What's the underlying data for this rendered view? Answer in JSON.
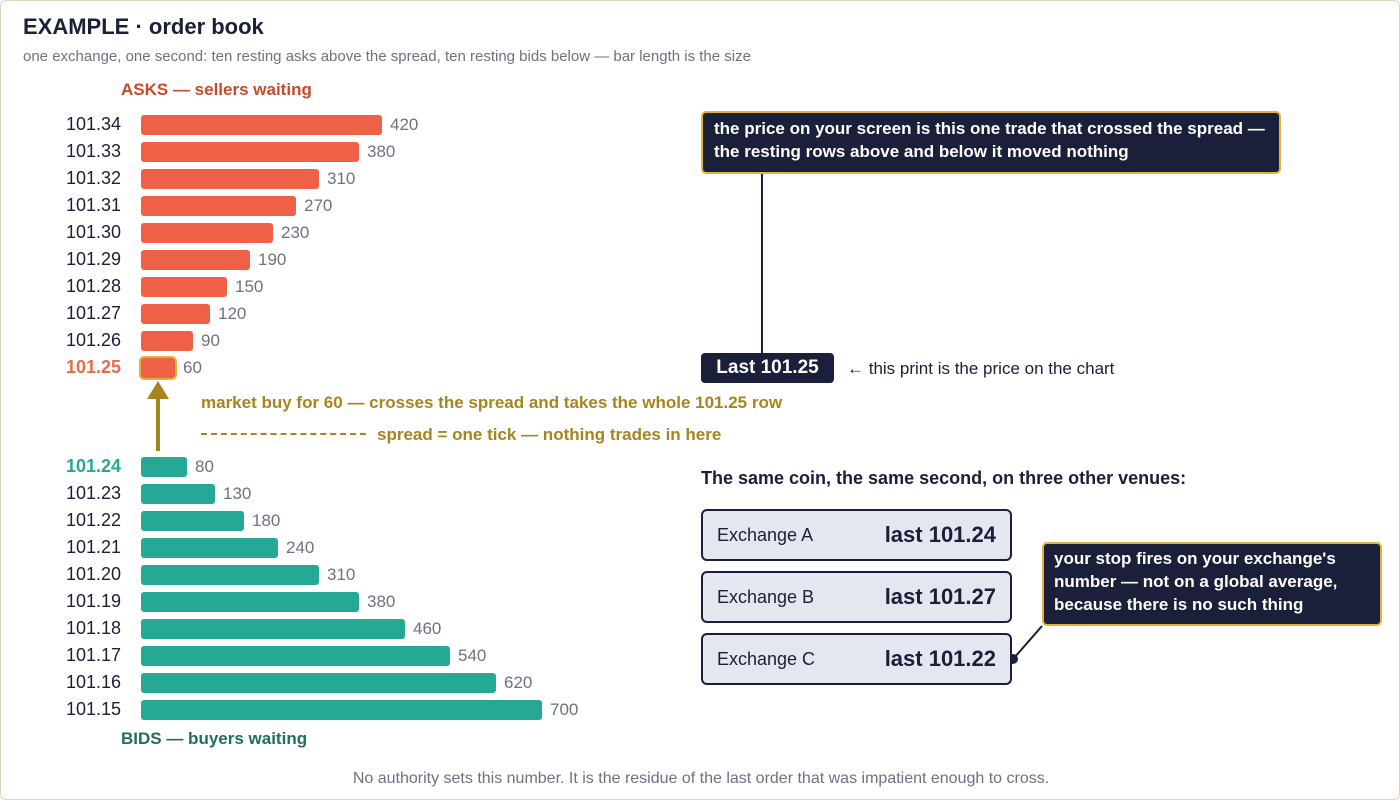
{
  "header": {
    "title": "EXAMPLE · order book",
    "subtitle": "one exchange, one second: ten resting asks above the spread, ten resting bids below — bar length is the size"
  },
  "book": {
    "asks_label": "ASKS — sellers waiting",
    "bids_label": "BIDS — buyers waiting",
    "max_size": 700,
    "asks": [
      {
        "price": "101.34",
        "size": 420
      },
      {
        "price": "101.33",
        "size": 380
      },
      {
        "price": "101.32",
        "size": 310
      },
      {
        "price": "101.31",
        "size": 270
      },
      {
        "price": "101.30",
        "size": 230
      },
      {
        "price": "101.29",
        "size": 190
      },
      {
        "price": "101.28",
        "size": 150
      },
      {
        "price": "101.27",
        "size": 120
      },
      {
        "price": "101.26",
        "size": 90
      },
      {
        "price": "101.25",
        "size": 60
      }
    ],
    "bids": [
      {
        "price": "101.24",
        "size": 80
      },
      {
        "price": "101.23",
        "size": 130
      },
      {
        "price": "101.22",
        "size": 180
      },
      {
        "price": "101.21",
        "size": 240
      },
      {
        "price": "101.20",
        "size": 310
      },
      {
        "price": "101.19",
        "size": 380
      },
      {
        "price": "101.18",
        "size": 460
      },
      {
        "price": "101.17",
        "size": 540
      },
      {
        "price": "101.16",
        "size": 620
      },
      {
        "price": "101.15",
        "size": 700
      }
    ],
    "market_buy_note": "market buy for 60 — crosses the spread and takes the whole 101.25 row",
    "spread_note": "spread = one tick — nothing trades in here"
  },
  "annotations": {
    "trade_callout": "the price on your screen is this one trade that crossed the spread — the resting rows above and below it moved nothing",
    "last_pill": "Last 101.25",
    "last_note": "← this print is the price on the chart",
    "stop_callout": "your stop fires on your exchange's number — not on a global average, because there is no such thing"
  },
  "venues": {
    "heading": "The same coin, the same second, on three other venues:",
    "items": [
      {
        "name": "Exchange A",
        "last": "last 101.24"
      },
      {
        "name": "Exchange B",
        "last": "last 101.27"
      },
      {
        "name": "Exchange C",
        "last": "last 101.22"
      }
    ]
  },
  "footer": "No authority sets this number. It is the residue of the last order that was impatient enough to cross.",
  "colors": {
    "ask": "#ef6146",
    "bid": "#26a896",
    "navy": "#1a1f3a",
    "gold": "#a8841f",
    "highlight": "#e2b33c"
  }
}
